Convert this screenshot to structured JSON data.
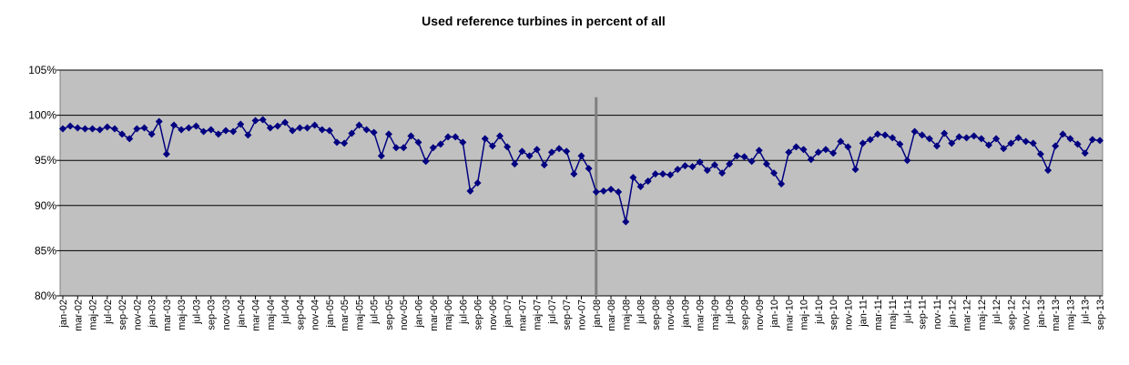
{
  "chart_data": {
    "type": "line",
    "title": "Used reference turbines in  percent of all",
    "categories": [
      "jan-02",
      null,
      "mar-02",
      null,
      "maj-02",
      null,
      "jul-02",
      null,
      "sep-02",
      null,
      "nov-02",
      null,
      "jan-03",
      null,
      "mar-03",
      null,
      "maj-03",
      null,
      "jul-03",
      null,
      "sep-03",
      null,
      "nov-03",
      null,
      "jan-04",
      null,
      "mar-04",
      null,
      "maj-04",
      null,
      "jul-04",
      null,
      "sep-04",
      null,
      "nov-04",
      null,
      "jan-05",
      null,
      "mar-05",
      null,
      "maj-05",
      null,
      "jul-05",
      null,
      "sep-05",
      null,
      "nov-05",
      null,
      "jan-06",
      null,
      "mar-06",
      null,
      "maj-06",
      null,
      "jul-06",
      null,
      "sep-06",
      null,
      "nov-06",
      null,
      "jan-07",
      null,
      "mar-07",
      null,
      "maj-07",
      null,
      "jul-07",
      null,
      "sep-07",
      null,
      "nov-07",
      null,
      "jan-08",
      null,
      "mar-08",
      null,
      "maj-08",
      null,
      "jul-08",
      null,
      "sep-08",
      null,
      "nov-08",
      null,
      "jan-09",
      null,
      "mar-09",
      null,
      "maj-09",
      null,
      "jul-09",
      null,
      "sep-09",
      null,
      "nov-09",
      null,
      "jan-10",
      null,
      "mar-10",
      null,
      "maj-10",
      null,
      "jul-10",
      null,
      "sep-10",
      null,
      "nov-10",
      null,
      "jan-11",
      null,
      "mar-11",
      null,
      "maj-11",
      null,
      "jul-11",
      null,
      "sep-11",
      null,
      "nov-11",
      null,
      "jan-12",
      null,
      "mar-12",
      null,
      "maj-12",
      null,
      "jul-12",
      null,
      "sep-12",
      null,
      "nov-12",
      null,
      "jan-13",
      null,
      "mar-13",
      null,
      "maj-13",
      null,
      "jul-13",
      null,
      "sep-13"
    ],
    "values": [
      98.5,
      98.8,
      98.6,
      98.5,
      98.5,
      98.4,
      98.7,
      98.5,
      97.9,
      97.4,
      98.5,
      98.6,
      97.9,
      99.3,
      95.7,
      98.9,
      98.4,
      98.6,
      98.8,
      98.2,
      98.4,
      97.9,
      98.3,
      98.2,
      99.0,
      97.8,
      99.4,
      99.5,
      98.6,
      98.8,
      99.2,
      98.3,
      98.6,
      98.6,
      98.9,
      98.4,
      98.3,
      97.0,
      96.9,
      98.0,
      98.9,
      98.4,
      98.1,
      95.5,
      97.9,
      96.4,
      96.4,
      97.7,
      97.0,
      94.9,
      96.4,
      96.8,
      97.6,
      97.6,
      97.0,
      91.6,
      92.5,
      97.4,
      96.6,
      97.7,
      96.5,
      94.6,
      96.0,
      95.5,
      96.2,
      94.5,
      95.9,
      96.3,
      96.0,
      93.5,
      95.5,
      94.1,
      91.5,
      91.6,
      91.8,
      91.5,
      88.2,
      93.1,
      92.1,
      92.7,
      93.5,
      93.5,
      93.4,
      94.0,
      94.4,
      94.3,
      94.8,
      93.9,
      94.5,
      93.6,
      94.6,
      95.5,
      95.4,
      94.9,
      96.1,
      94.6,
      93.6,
      92.4,
      95.9,
      96.5,
      96.2,
      95.1,
      95.9,
      96.2,
      95.8,
      97.1,
      96.5,
      94.0,
      96.9,
      97.3,
      97.9,
      97.8,
      97.5,
      96.8,
      95.0,
      98.2,
      97.8,
      97.4,
      96.6,
      98.0,
      96.9,
      97.6,
      97.5,
      97.7,
      97.4,
      96.7,
      97.4,
      96.3,
      96.9,
      97.5,
      97.1,
      96.9,
      95.7,
      93.9,
      96.6,
      97.9,
      97.4,
      96.8,
      95.8,
      97.3,
      97.2
    ],
    "color": "#000080",
    "ylim": [
      80,
      105
    ],
    "yticks": [
      {
        "value": 80,
        "label": "80%"
      },
      {
        "value": 85,
        "label": "85%"
      },
      {
        "value": 90,
        "label": "90%"
      },
      {
        "value": 95,
        "label": "95%"
      },
      {
        "value": 100,
        "label": "100%"
      },
      {
        "value": 105,
        "label": "105%"
      }
    ],
    "grid": true,
    "reference_line": {
      "x": "jan-08",
      "from": 80,
      "to": 102,
      "color": "#808080"
    }
  }
}
